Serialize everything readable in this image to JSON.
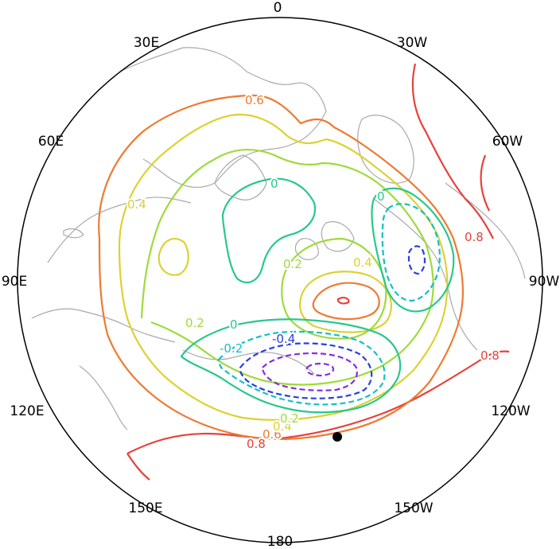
{
  "map": {
    "projection": "north-polar-stereographic",
    "colors": {
      "c_0.8": "#e8413a",
      "c_0.6": "#ee7a32",
      "c_0.4": "#dcd232",
      "c_0.2": "#9edb3a",
      "c_0": "#28c88c",
      "c_-0.2": "#14bfc8",
      "c_-0.4": "#2a3fdc",
      "c_-0.6": "#8a2be2",
      "coast": "#a9a9a9"
    },
    "longitude_labels": {
      "lon_0": "0",
      "lon_30e": "30E",
      "lon_30w": "30W",
      "lon_60e": "60E",
      "lon_60w": "60W",
      "lon_90e": "90E",
      "lon_90w": "90W",
      "lon_120e": "120E",
      "lon_120w": "120W",
      "lon_150e": "150E",
      "lon_150w": "150W",
      "lon_180": "180"
    },
    "contour_labels": {
      "l06": "0.6",
      "l04a": "0.4",
      "l02a": "0.2",
      "l0a": "0",
      "l0b": "0",
      "l02b": "0.2",
      "l04b": "0.4",
      "l08a": "0.8",
      "l08b": "0.8",
      "l0c": "0",
      "l02c": "0.2",
      "lm02": "-0.2",
      "lm04": "-0.4",
      "l08c": "0.8",
      "l06b": "0.6",
      "l04c": "0.4",
      "l02d": "0.2"
    },
    "marker": "station-dot"
  }
}
